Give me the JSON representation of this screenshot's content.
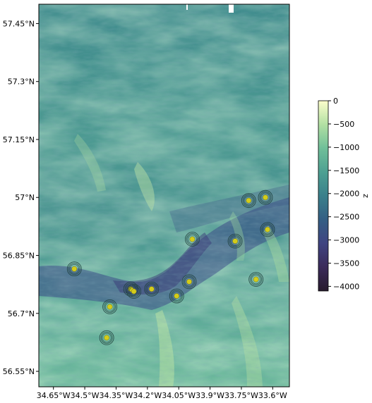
{
  "map": {
    "lon_range": [
      -34.72,
      -33.52
    ],
    "lat_range": [
      56.51,
      57.5
    ],
    "x_ticks": [
      {
        "value": -34.65,
        "label": "34.65°W"
      },
      {
        "value": -34.5,
        "label": "34.5°W"
      },
      {
        "value": -34.35,
        "label": "34.35°W"
      },
      {
        "value": -34.2,
        "label": "34.2°W"
      },
      {
        "value": -34.05,
        "label": "34.05°W"
      },
      {
        "value": -33.9,
        "label": "33.9°W"
      },
      {
        "value": -33.75,
        "label": "33.75°W"
      },
      {
        "value": -33.6,
        "label": "33.6°W"
      }
    ],
    "y_ticks": [
      {
        "value": 57.45,
        "label": "57.45°N"
      },
      {
        "value": 57.3,
        "label": "57.3°N"
      },
      {
        "value": 57.15,
        "label": "57.15°N"
      },
      {
        "value": 57.0,
        "label": "57°N"
      },
      {
        "value": 56.85,
        "label": "56.85°N"
      },
      {
        "value": 56.7,
        "label": "56.7°N"
      },
      {
        "value": 56.55,
        "label": "56.55°N"
      }
    ],
    "points": [
      {
        "lon": -34.55,
        "lat": 56.815
      },
      {
        "lon": -34.38,
        "lat": 56.717
      },
      {
        "lon": -34.395,
        "lat": 56.637
      },
      {
        "lon": -34.28,
        "lat": 56.763
      },
      {
        "lon": -34.265,
        "lat": 56.757
      },
      {
        "lon": -34.18,
        "lat": 56.763
      },
      {
        "lon": -34.06,
        "lat": 56.745
      },
      {
        "lon": -34.0,
        "lat": 56.782
      },
      {
        "lon": -33.985,
        "lat": 56.892
      },
      {
        "lon": -33.78,
        "lat": 56.887
      },
      {
        "lon": -33.715,
        "lat": 56.992
      },
      {
        "lon": -33.635,
        "lat": 57.0
      },
      {
        "lon": -33.625,
        "lat": 56.917
      },
      {
        "lon": -33.68,
        "lat": 56.788
      }
    ],
    "colors": {
      "point_fill": "#d4cc1a",
      "ring": "#1c3d3a"
    }
  },
  "colorbar": {
    "label": "z",
    "range": [
      -4100,
      0
    ],
    "ticks": [
      "0",
      "−500",
      "−1000",
      "−1500",
      "−2000",
      "−2500",
      "−3000",
      "−3500",
      "−4000"
    ],
    "tick_values": [
      0,
      -500,
      -1000,
      -1500,
      -2000,
      -2500,
      -3000,
      -3500,
      -4000
    ],
    "colormap": [
      "#fdfecc",
      "#b2e0a3",
      "#6fbf99",
      "#4da092",
      "#3a808b",
      "#345f84",
      "#3f4481",
      "#3b2b5a",
      "#281b2e"
    ]
  }
}
